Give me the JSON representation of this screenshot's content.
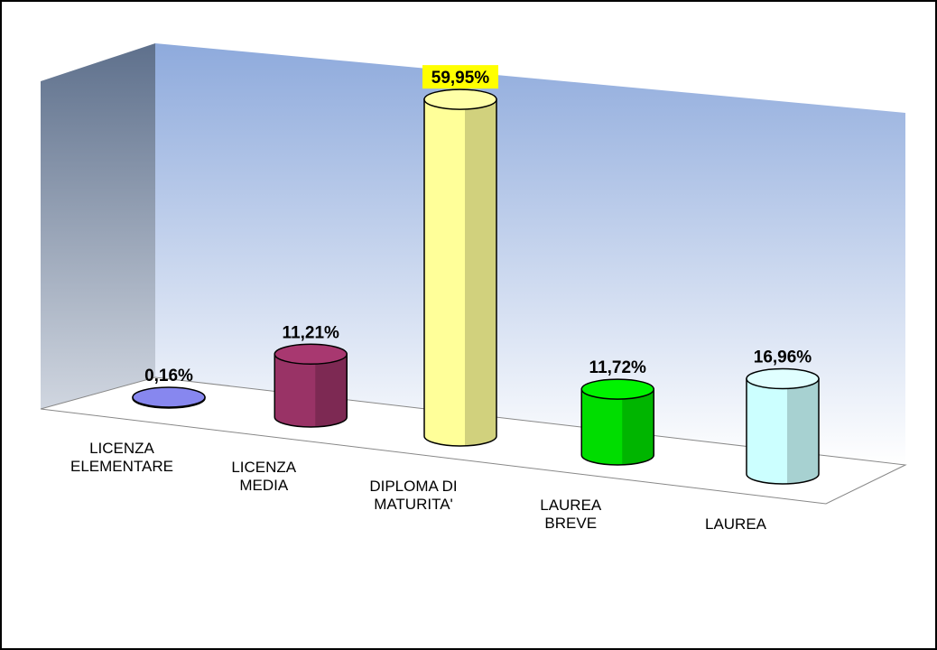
{
  "chart_data": {
    "type": "bar3d-cylinder",
    "categories": [
      "LICENZA\nELEMENTARE",
      "LICENZA\nMEDIA",
      "DIPLOMA DI\nMATURITA'",
      "LAUREA\nBREVE",
      "LAUREA"
    ],
    "values": [
      0.16,
      11.21,
      59.95,
      11.72,
      16.96
    ],
    "value_labels": [
      "0,16%",
      "11,21%",
      "59,95%",
      "11,72%",
      "16,96%"
    ],
    "colors": [
      "#7b7bd9",
      "#993366",
      "#ffff99",
      "#00dd00",
      "#ccffff"
    ],
    "highlight_index": 2,
    "highlight_color": "#ffff00"
  }
}
